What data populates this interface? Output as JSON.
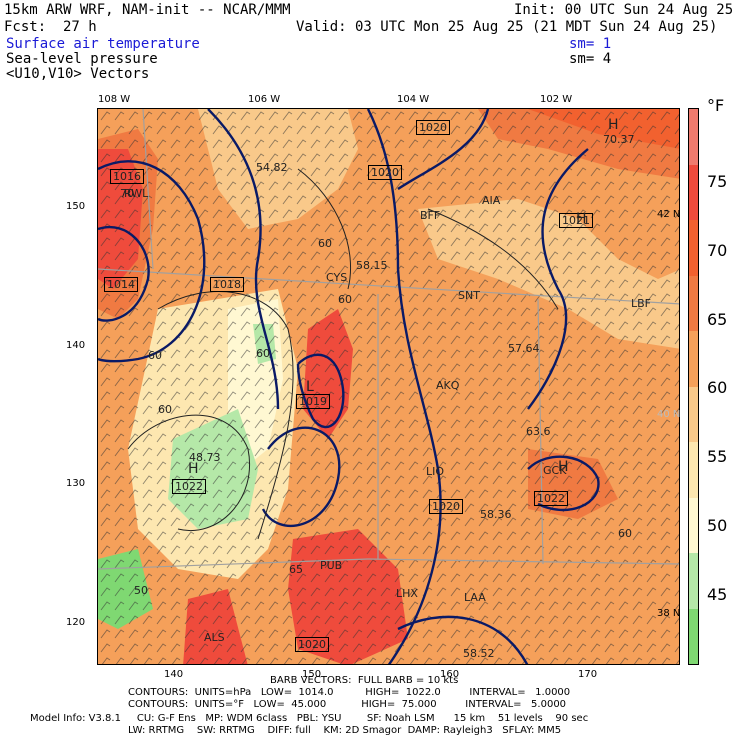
{
  "header": {
    "model": "15km ARW WRF, NAM-init -- NCAR/MMM",
    "init": "Init: 00 UTC Sun 24 Aug 25",
    "fcst": "Fcst:  27 h",
    "valid": "Valid: 03 UTC Mon 25 Aug 25 (21 MDT Sun 24 Aug 25)",
    "field1": "Surface air temperature",
    "field1_sm": "sm= 1",
    "field2": "Sea-level pressure",
    "field2_sm": "sm= 4",
    "field3": "<U10,V10> Vectors"
  },
  "axes": {
    "top": [
      "108 W",
      "106 W",
      "104 W",
      "102 W"
    ],
    "left": [
      "150",
      "140",
      "130",
      "120"
    ],
    "bottom": [
      "140",
      "150",
      "160",
      "170"
    ],
    "right": [
      "42 N",
      "40 N",
      "38 N"
    ]
  },
  "map_labels": {
    "t1": "54.82",
    "t2": "58.15",
    "t3": "57.64",
    "t4": "63.6",
    "t5": "48.73",
    "t6": "58.36",
    "t7": "58.52",
    "t8": "70.37",
    "c60a": "60",
    "c60b": "60",
    "c60c": "60",
    "c60d": "60",
    "c60e": "60",
    "c60f": "60",
    "c65": "65",
    "c70": "70",
    "c50": "50",
    "p1016": "1016",
    "p1020a": "1020",
    "p1020b": "1020",
    "p1014": "1014",
    "p1018": "1018",
    "p1019": "1019",
    "p1022a": "1022",
    "p1020c": "1020",
    "p1022b": "1022",
    "p1021": "1021",
    "p1020d": "1020",
    "H": "H",
    "L": "L",
    "rwl": "RWL",
    "bff": "BFF",
    "aia": "AIA",
    "cys": "CYS",
    "snt": "SNT",
    "lbf": "LBF",
    "akq": "AKQ",
    "lio": "LIO",
    "pub": "PUB",
    "lhx": "LHX",
    "laa": "LAA",
    "als": "ALS",
    "gck": "GCK"
  },
  "legend": {
    "unit": "°F",
    "ticks": [
      "75",
      "70",
      "65",
      "60",
      "55",
      "50",
      "45"
    ],
    "colors": [
      "#f07b6e",
      "#ef4b3c",
      "#f2612f",
      "#f07a42",
      "#f5a05a",
      "#f9c98a",
      "#fde7b0",
      "#fff8d2",
      "#b5e8a8",
      "#7fd872"
    ]
  },
  "footer": {
    "barbs": "BARB VECTORS:  FULL BARB = 10 kts",
    "c1": "CONTOURS:  UNITS=hPa   LOW=  1014.0          HIGH=  1022.0         INTERVAL=   1.0000",
    "c2": "CONTOURS:  UNITS=°F   LOW=  45.000           HIGH=  75.000         INTERVAL=   5.0000",
    "m1": "Model Info: V3.8.1     CU: G-F Ens   MP: WDM 6class   PBL: YSU        SF: Noah LSM      15 km    51 levels    90 sec",
    "m2": "LW: RRTMG    SW: RRTMG    DIFF: full    KM: 2D Smagor  DAMP: Rayleigh3   SFLAY: MM5"
  }
}
